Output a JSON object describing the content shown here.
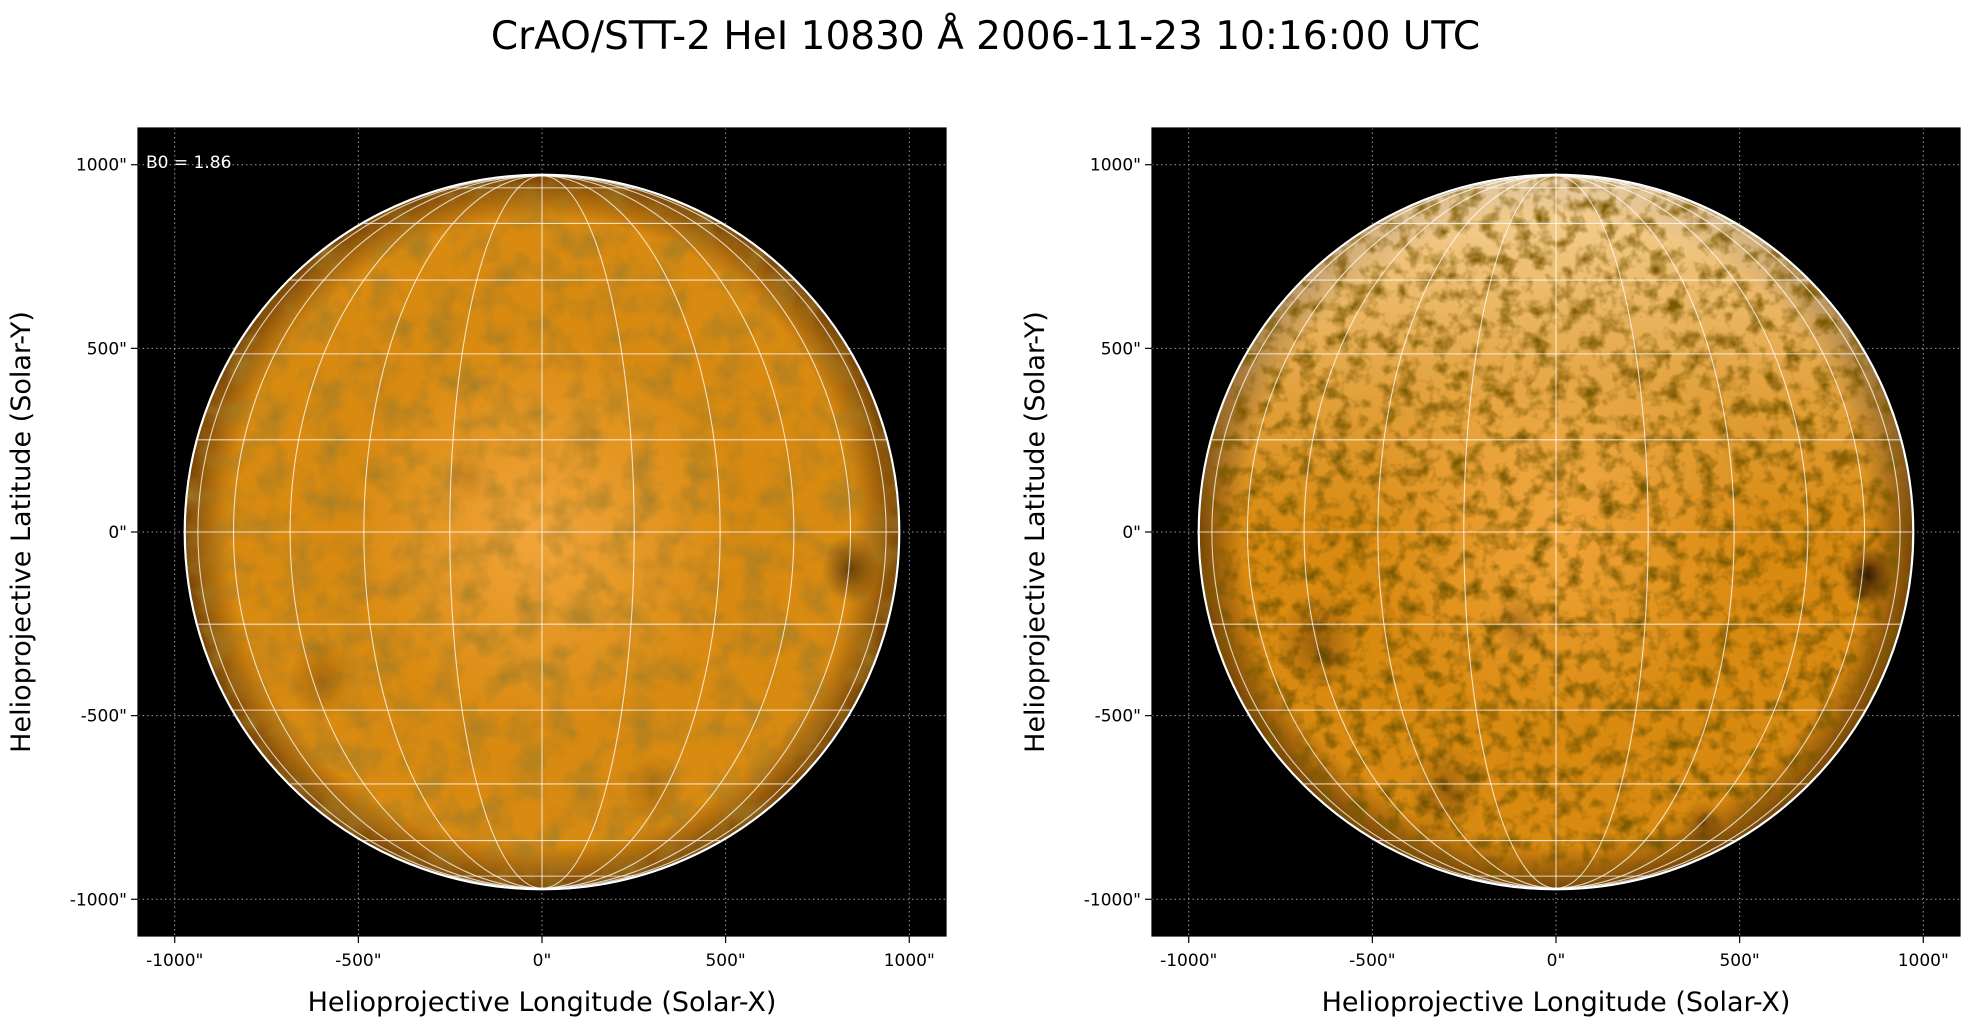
{
  "figure": {
    "title": "CrAO/STT-2 HeI 10830 Å 2006-11-23 10:16:00 UTC"
  },
  "colors": {
    "background": "#000000",
    "disk_center": "#f2a53a",
    "disk_mid": "#d98a10",
    "disk_limb": "#7a4708",
    "grid": "#ffffff",
    "limb_line": "#ffffff"
  },
  "panels": [
    {
      "x_label": "Helioprojective Longitude (Solar-X)",
      "y_label": "Helioprojective Latitude (Solar-Y)",
      "annotation": "B0 = 1.86",
      "x_ticks": [
        "-1000\"",
        "-500\"",
        "0\"",
        "500\"",
        "1000\""
      ],
      "y_ticks": [
        "1000\"",
        "500\"",
        "0\"",
        "-500\"",
        "-1000\""
      ],
      "x_range_arcsec": [
        -1100,
        1100
      ],
      "y_range_arcsec": [
        -1100,
        1100
      ],
      "tick_values_arcsec": [
        -1000,
        -500,
        0,
        500,
        1000
      ],
      "solar_radius_arcsec": 970,
      "style": "smooth",
      "dark_features": [
        {
          "x": 840,
          "y": -100,
          "r": 75,
          "strength": 0.55
        },
        {
          "x": -600,
          "y": -400,
          "r": 90,
          "strength": 0.25
        },
        {
          "x": 300,
          "y": -700,
          "r": 80,
          "strength": 0.2
        },
        {
          "x": -200,
          "y": 150,
          "r": 60,
          "strength": 0.15
        }
      ]
    },
    {
      "x_label": "Helioprojective Longitude (Solar-X)",
      "y_label": "Helioprojective Latitude (Solar-Y)",
      "x_ticks": [
        "-1000\"",
        "-500\"",
        "0\"",
        "500\"",
        "1000\""
      ],
      "y_ticks": [
        "1000\"",
        "500\"",
        "0\"",
        "-500\"",
        "-1000\""
      ],
      "x_range_arcsec": [
        -1100,
        1100
      ],
      "y_range_arcsec": [
        -1100,
        1100
      ],
      "tick_values_arcsec": [
        -1000,
        -500,
        0,
        500,
        1000
      ],
      "solar_radius_arcsec": 970,
      "style": "mottled",
      "dark_features": [
        {
          "x": 850,
          "y": -120,
          "r": 70,
          "strength": 0.85
        },
        {
          "x": -650,
          "y": -300,
          "r": 110,
          "strength": 0.35
        },
        {
          "x": -300,
          "y": -700,
          "r": 100,
          "strength": 0.3
        },
        {
          "x": 400,
          "y": -800,
          "r": 60,
          "strength": 0.35
        },
        {
          "x": -100,
          "y": -250,
          "r": 70,
          "strength": 0.25
        }
      ]
    }
  ]
}
